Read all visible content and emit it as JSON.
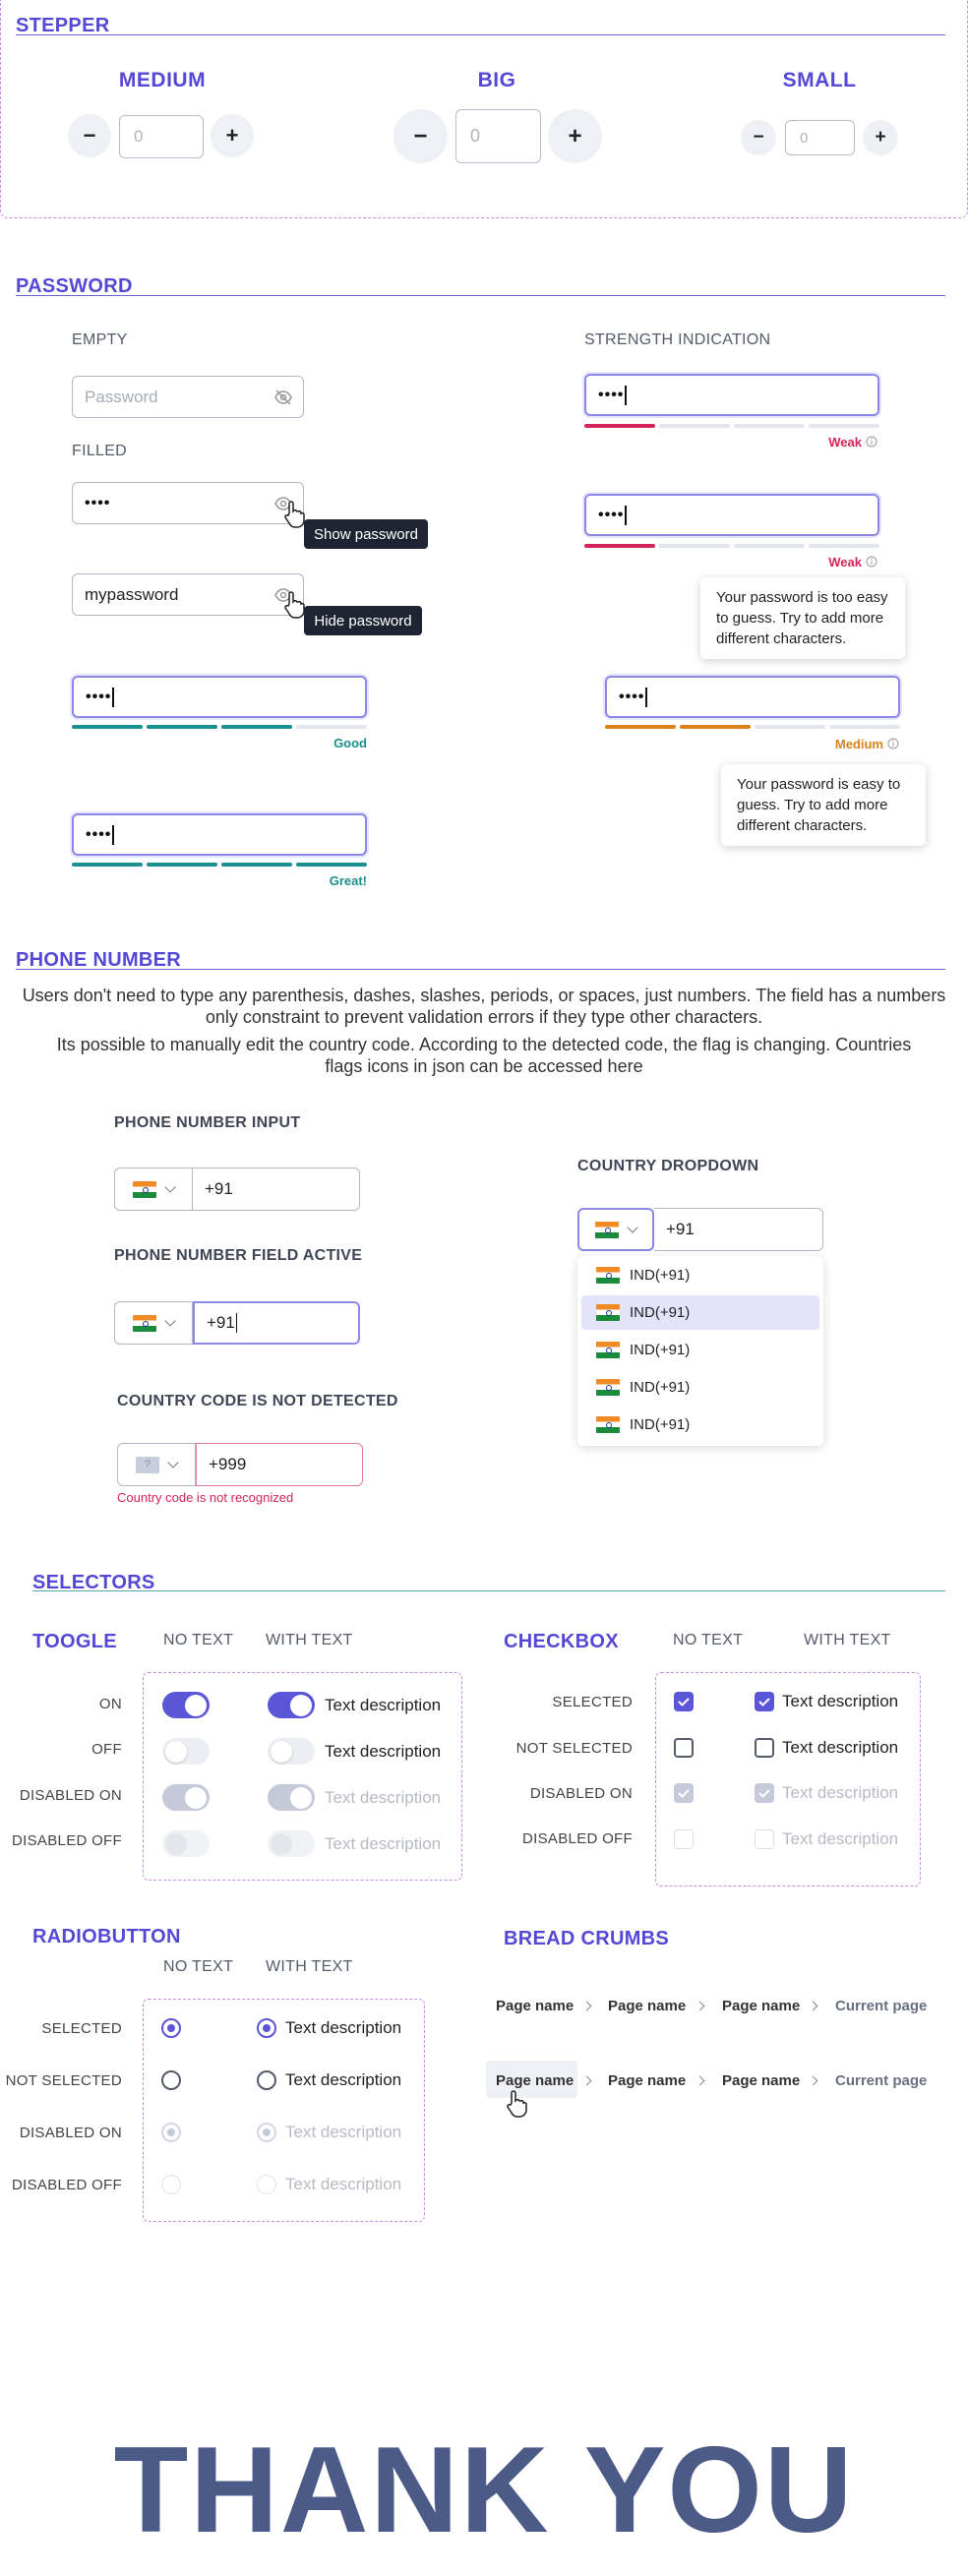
{
  "stepper": {
    "title": "STEPPER",
    "medium": "MEDIUM",
    "big": "BIG",
    "small": "SMALL",
    "value_placeholder": "0",
    "minus": "−",
    "plus": "+"
  },
  "password": {
    "title": "PASSWORD",
    "empty_label": "EMPTY",
    "filled_label": "FILLED",
    "strength_label": "STRENGTH INDICATION",
    "placeholder": "Password",
    "masked": "••••",
    "plain_value": "mypassword",
    "show_tip": "Show password",
    "hide_tip": "Hide password",
    "good": "Good",
    "great": "Great!",
    "weak": "Weak",
    "medium": "Medium",
    "too_easy_msg": "Your password is too easy to guess. Try to add more different characters.",
    "easy_msg": "Your password is easy to guess. Try to add more different characters.",
    "colors": {
      "weak": "#d6245a",
      "good": "#1a8f8f",
      "medium": "#d9821c"
    }
  },
  "phone": {
    "title": "PHONE NUMBER",
    "desc1": "Users don't need to type any parenthesis, dashes, slashes, periods, or spaces, just numbers. The field has a numbers only constraint to prevent validation errors if they type other characters.",
    "desc2": "Its possible to manually edit the country code. According to the detected code, the flag is changing. Countries flags icons in json can be accessed here",
    "input_label": "PHONE NUMBER INPUT",
    "active_label": "PHONE NUMBER FIELD ACTIVE",
    "not_detected_label": "COUNTRY CODE IS NOT DETECTED",
    "dropdown_label": "COUNTRY DROPDOWN",
    "value": "+91",
    "unknown_value": "+999",
    "unknown_flag": "?",
    "error": "Country code is not recognized",
    "options": [
      "IND(+91)",
      "IND(+91)",
      "IND(+91)",
      "IND(+91)",
      "IND(+91)"
    ]
  },
  "selectors": {
    "title": "SELECTORS",
    "toggle_title": "TOOGLE",
    "checkbox_title": "CHECKBOX",
    "radio_title": "RADIOBUTTON",
    "no_text": "NO TEXT",
    "with_text": "WITH TEXT",
    "text_description": "Text description",
    "toggle_rows": [
      "ON",
      "OFF",
      "DISABLED ON",
      "DISABLED OFF"
    ],
    "checkbox_rows": [
      "SELECTED",
      "NOT SELECTED",
      "DISABLED ON",
      "DISABLED OFF"
    ],
    "radio_rows": [
      "SELECTED",
      "NOT SELECTED",
      "DISABLED ON",
      "DISABLED OFF"
    ],
    "accent": "#5b55d8"
  },
  "breadcrumbs": {
    "title": "BREAD CRUMBS",
    "items": [
      "Page name",
      "Page name",
      "Page name",
      "Current page"
    ]
  },
  "footer": {
    "thank_you": "THANK YOU"
  }
}
